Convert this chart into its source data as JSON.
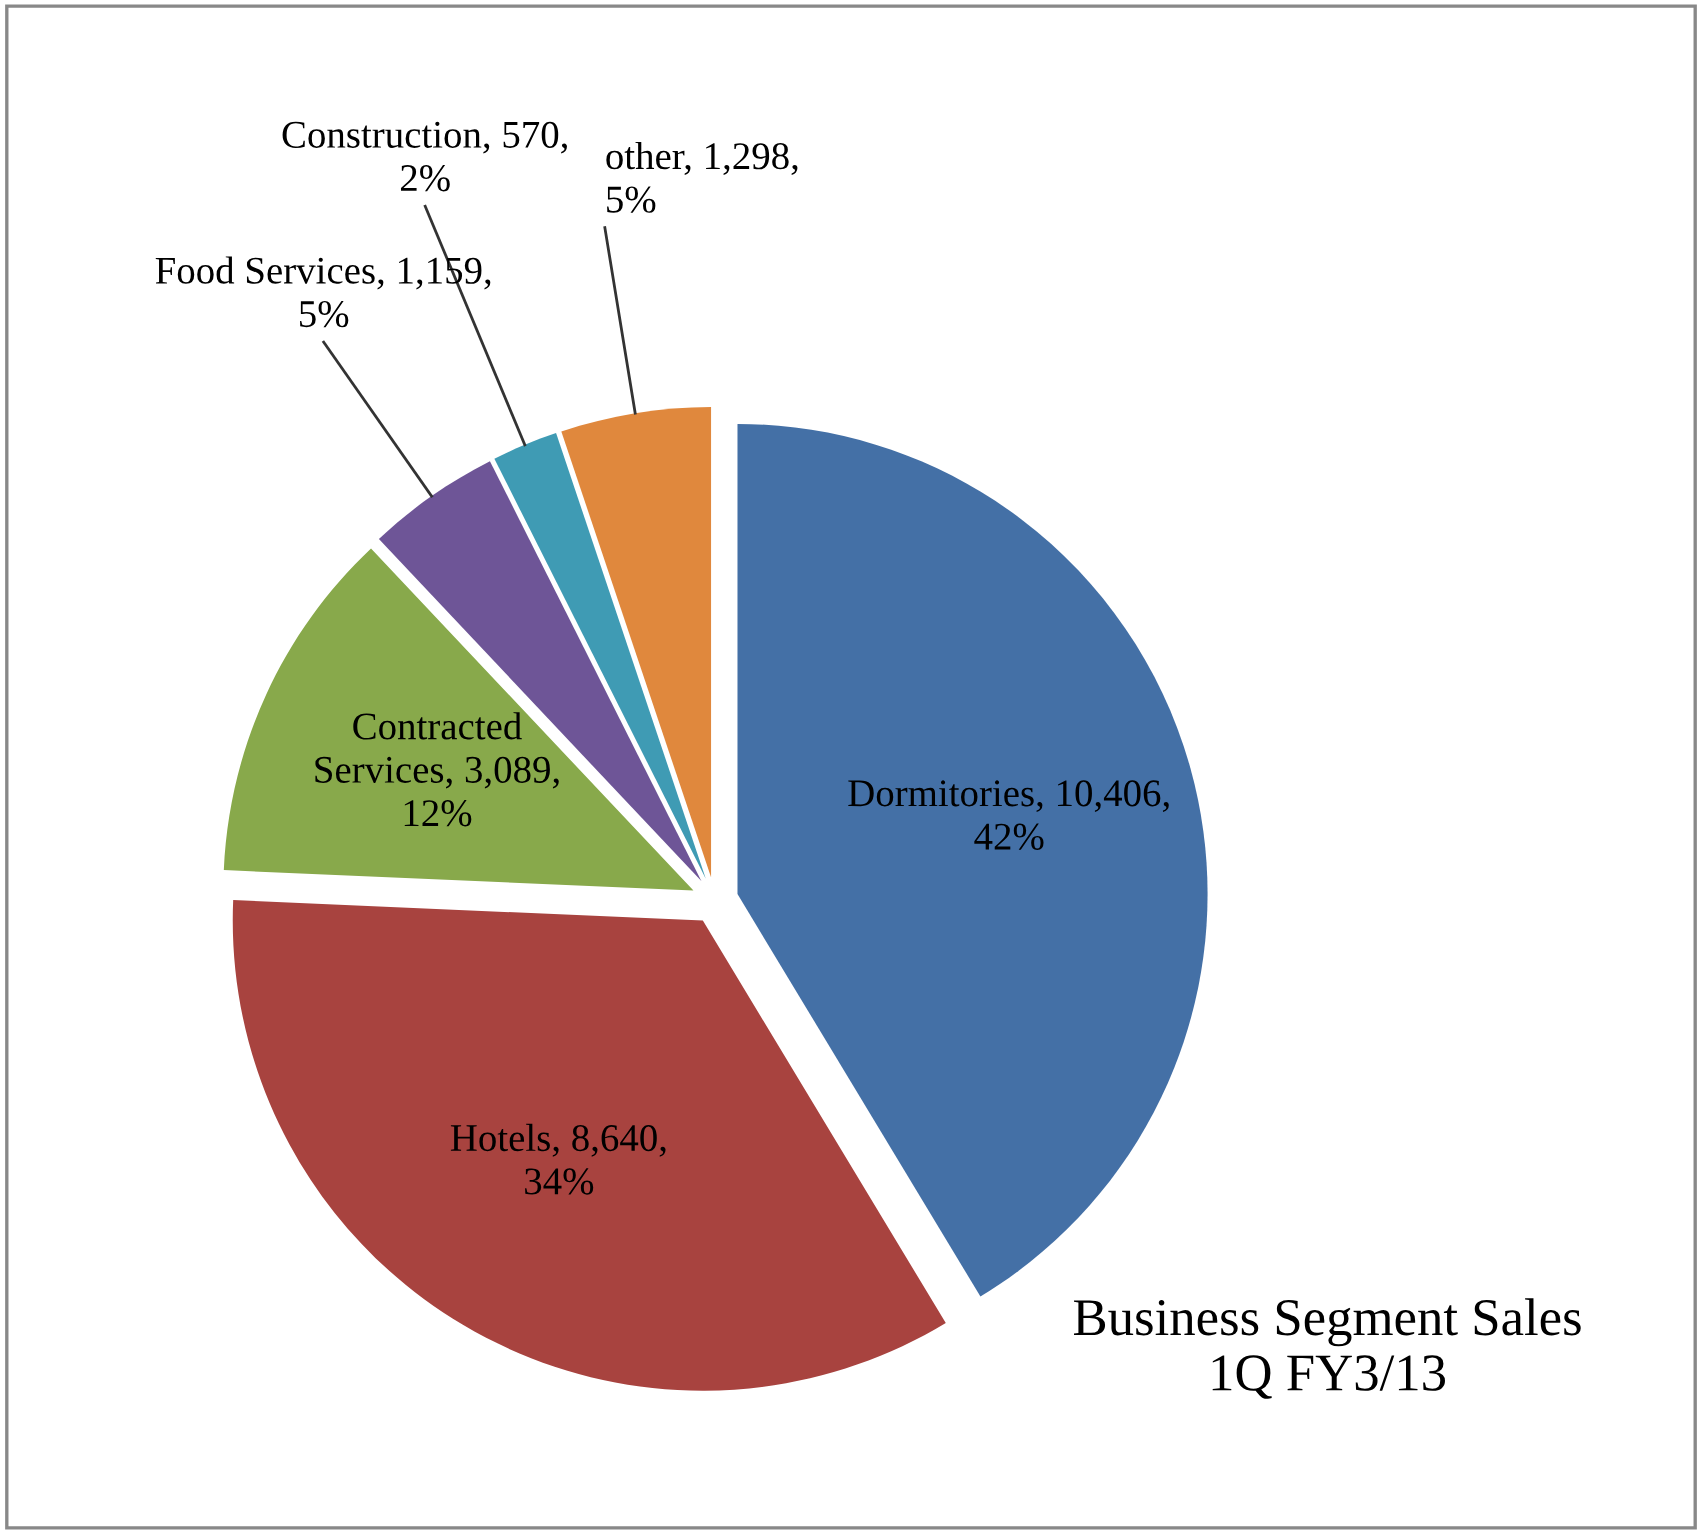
{
  "chart_data": {
    "type": "pie",
    "title": "Business Segment Sales\n1Q FY3/13",
    "categories": [
      "Dormitories",
      "Hotels",
      "Contracted Services",
      "Food Services",
      "Construction",
      "other"
    ],
    "values": [
      10406,
      8640,
      3089,
      1159,
      570,
      1298
    ],
    "value_labels": [
      "10,406, 42%",
      "8,640, 34%",
      "3,089, 12%",
      "1,159, 5%",
      "570, 2%",
      "1,298, 5%"
    ],
    "colors": [
      "#4470a6",
      "#a8433f",
      "#88a94b",
      "#6e5597",
      "#3f9bb4",
      "#e0883d"
    ],
    "legend": false
  }
}
